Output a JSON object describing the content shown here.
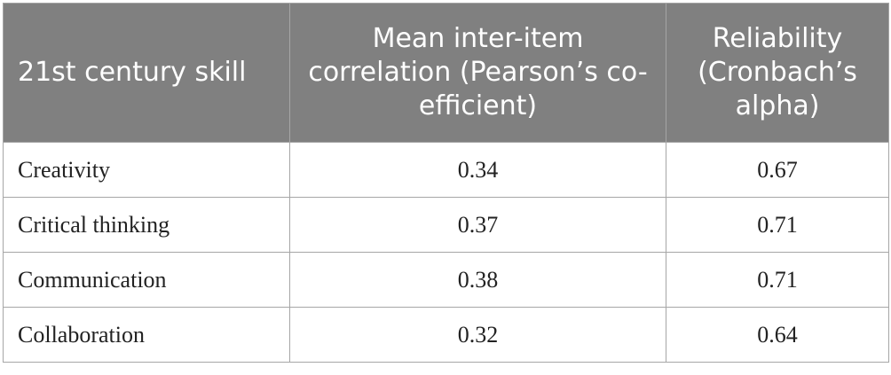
{
  "table": {
    "headers": {
      "skill": "21st century skill",
      "correlation": "Mean inter-item correlation (Pearson’s co-efficient)",
      "reliability": "Reliability (Cronbach’s alpha)"
    },
    "rows": [
      {
        "skill": "Creativity",
        "correlation": "0.34",
        "reliability": "0.67"
      },
      {
        "skill": "Critical thinking",
        "correlation": "0.37",
        "reliability": "0.71"
      },
      {
        "skill": "Communication",
        "correlation": "0.38",
        "reliability": "0.71"
      },
      {
        "skill": "Collaboration",
        "correlation": "0.32",
        "reliability": "0.64"
      }
    ],
    "colors": {
      "header_background": "#808080",
      "header_text": "#ffffff",
      "border": "#a6a6a6",
      "body_text": "#222222"
    }
  }
}
